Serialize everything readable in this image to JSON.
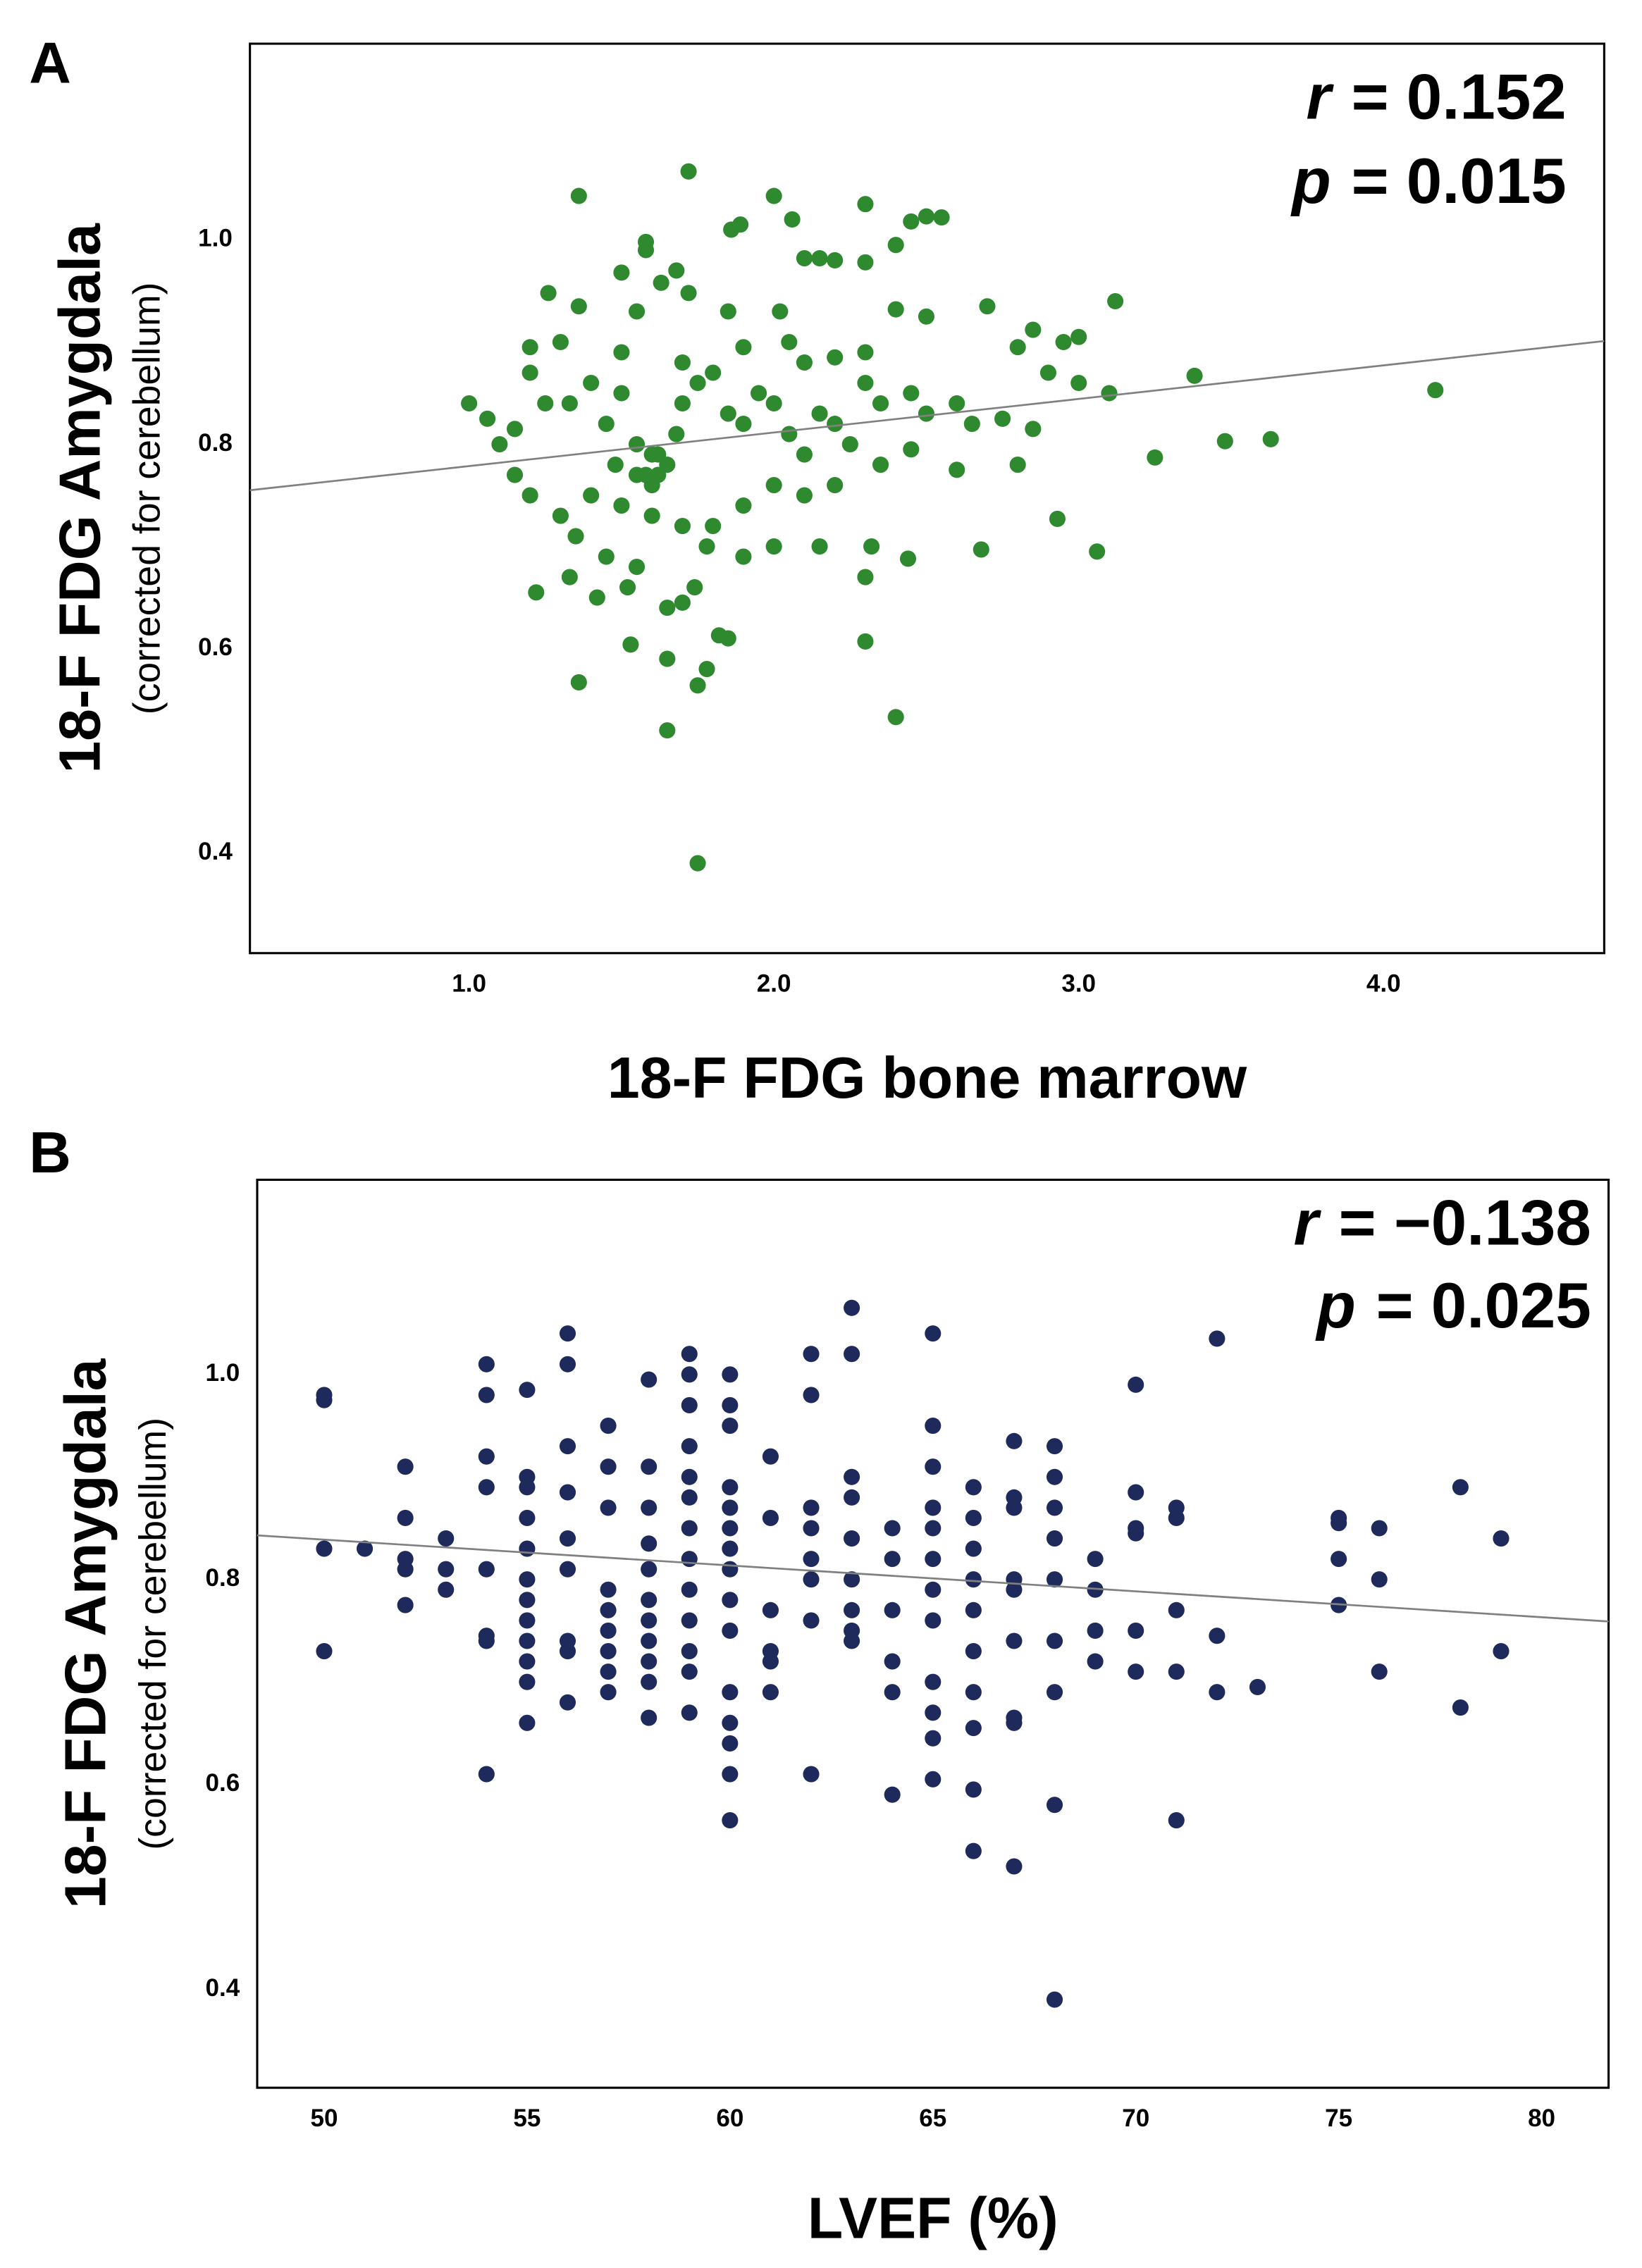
{
  "chart_data": [
    {
      "type": "scatter",
      "panel": "A",
      "xlabel": "18-F FDG bone marrow",
      "ylabel": "18-F FDG Amygdala",
      "ylabel_sub": "(corrected for cerebellum)",
      "annotations": [
        {
          "var": "r",
          "text": "= 0.152"
        },
        {
          "var": "p",
          "text": "= 0.015"
        }
      ],
      "xlim": [
        0.281,
        4.724
      ],
      "ylim": [
        0.302,
        1.192
      ],
      "xticks": [
        {
          "value": 1,
          "label": "1.0"
        },
        {
          "value": 2,
          "label": "2.0"
        },
        {
          "value": 3,
          "label": "3.0"
        },
        {
          "value": 4,
          "label": "4.0"
        }
      ],
      "yticks": [
        0.4,
        0.6,
        0.8,
        {
          "value": 1,
          "label": "1.0"
        }
      ],
      "series": [
        {
          "color": "#2f8a2f",
          "x": [
            1.72,
            1.36,
            2.0,
            2.3,
            2.5,
            2.55,
            2.45,
            2.06,
            1.89,
            1.86,
            1.58,
            1.58,
            2.1,
            2.15,
            2.2,
            2.3,
            2.4,
            1.5,
            1.63,
            1.68,
            1.72,
            1.26,
            1.36,
            1.55,
            1.85,
            2.02,
            2.4,
            2.5,
            2.7,
            3.12,
            2.85,
            2.95,
            2.8,
            3.0,
            1.2,
            1.3,
            1.5,
            1.7,
            1.9,
            2.05,
            2.1,
            2.2,
            2.3,
            1.0,
            1.06,
            1.1,
            1.15,
            1.2,
            1.25,
            1.33,
            1.4,
            1.45,
            1.5,
            1.55,
            1.6,
            1.62,
            1.65,
            1.68,
            1.7,
            1.75,
            1.8,
            1.85,
            1.9,
            1.95,
            2.0,
            2.05,
            2.1,
            2.15,
            2.2,
            2.25,
            2.3,
            2.35,
            2.45,
            2.5,
            2.6,
            2.65,
            2.75,
            2.9,
            3.0,
            3.1,
            3.38,
            4.17,
            3.48,
            3.63,
            3.25,
            2.8,
            2.85,
            2.6,
            2.45,
            2.35,
            2.2,
            2.1,
            2.0,
            1.9,
            1.8,
            1.7,
            1.6,
            1.5,
            1.4,
            1.3,
            1.2,
            1.15,
            1.35,
            1.45,
            1.55,
            1.7,
            1.78,
            1.9,
            2.0,
            2.15,
            2.3,
            2.32,
            2.44,
            2.68,
            2.93,
            3.06,
            1.22,
            1.33,
            1.42,
            1.52,
            1.65,
            1.74,
            1.85,
            1.82,
            1.53,
            1.65,
            2.3,
            1.78,
            1.36,
            1.75,
            2.4,
            1.65,
            1.75,
            1.6,
            1.58,
            1.62,
            1.55,
            1.48
          ],
          "values": [
            1.067,
            1.043,
            1.043,
            1.035,
            1.023,
            1.022,
            1.018,
            1.02,
            1.015,
            1.01,
            0.998,
            0.99,
            0.982,
            0.982,
            0.98,
            0.978,
            0.995,
            0.968,
            0.958,
            0.97,
            0.948,
            0.948,
            0.935,
            0.93,
            0.93,
            0.93,
            0.932,
            0.925,
            0.935,
            0.94,
            0.912,
            0.9,
            0.895,
            0.905,
            0.895,
            0.9,
            0.89,
            0.88,
            0.895,
            0.9,
            0.88,
            0.885,
            0.89,
            0.84,
            0.825,
            0.8,
            0.815,
            0.87,
            0.84,
            0.84,
            0.86,
            0.82,
            0.85,
            0.8,
            0.79,
            0.77,
            0.78,
            0.81,
            0.84,
            0.86,
            0.87,
            0.83,
            0.82,
            0.85,
            0.84,
            0.81,
            0.79,
            0.83,
            0.82,
            0.8,
            0.86,
            0.84,
            0.85,
            0.83,
            0.84,
            0.82,
            0.825,
            0.87,
            0.86,
            0.85,
            0.867,
            0.853,
            0.803,
            0.805,
            0.787,
            0.78,
            0.815,
            0.775,
            0.795,
            0.78,
            0.76,
            0.75,
            0.76,
            0.74,
            0.72,
            0.72,
            0.73,
            0.74,
            0.75,
            0.73,
            0.75,
            0.77,
            0.71,
            0.69,
            0.68,
            0.645,
            0.7,
            0.69,
            0.7,
            0.7,
            0.67,
            0.7,
            0.688,
            0.697,
            0.727,
            0.695,
            0.655,
            0.67,
            0.65,
            0.66,
            0.64,
            0.66,
            0.61,
            0.613,
            0.604,
            0.59,
            0.607,
            0.58,
            0.567,
            0.564,
            0.533,
            0.52,
            0.39,
            0.76,
            0.77,
            0.79,
            0.77,
            0.78
          ]
        }
      ],
      "trendline": {
        "color": "#808080",
        "x": [
          0.281,
          4.724
        ],
        "values": [
          0.755,
          0.901
        ]
      }
    },
    {
      "type": "scatter",
      "panel": "B",
      "xlabel": "LVEF (%)",
      "ylabel": "18-F FDG Amygdala",
      "ylabel_sub": "(corrected for cerebellum)",
      "annotations": [
        {
          "var": "r",
          "text": "= −0.138"
        },
        {
          "var": "p",
          "text": "= 0.025"
        }
      ],
      "xlim": [
        48.35,
        81.65
      ],
      "ylim": [
        0.304,
        1.19
      ],
      "xticks": [
        50,
        55,
        60,
        65,
        70,
        75,
        80
      ],
      "yticks": [
        0.4,
        0.6,
        0.8,
        {
          "value": 1,
          "label": "1.0"
        }
      ],
      "series": [
        {
          "color": "#1f2a5c",
          "x": [
            50,
            50,
            50,
            50,
            51,
            52,
            52,
            52,
            52,
            52,
            53,
            53,
            53,
            54,
            54,
            54,
            54,
            54,
            54,
            54,
            54,
            55,
            55,
            55,
            55,
            55,
            55,
            55,
            55,
            55,
            55,
            55,
            55,
            56,
            56,
            56,
            56,
            56,
            56,
            56,
            56,
            56,
            57,
            57,
            57,
            57,
            57,
            57,
            57,
            57,
            57,
            58,
            58,
            58,
            58,
            58,
            58,
            58,
            58,
            58,
            58,
            58,
            59,
            59,
            59,
            59,
            59,
            59,
            59,
            59,
            59,
            59,
            59,
            59,
            59,
            60,
            60,
            60,
            60,
            60,
            60,
            60,
            60,
            60,
            60,
            60,
            60,
            60,
            60,
            60,
            61,
            61,
            61,
            61,
            61,
            61,
            62,
            62,
            62,
            62,
            62,
            62,
            62,
            62,
            63,
            63,
            63,
            63,
            63,
            63,
            63,
            63,
            63,
            64,
            64,
            64,
            64,
            64,
            64,
            65,
            65,
            65,
            65,
            65,
            65,
            65,
            65,
            65,
            65,
            65,
            65,
            66,
            66,
            66,
            66,
            66,
            66,
            66,
            66,
            66,
            66,
            67,
            67,
            67,
            67,
            67,
            67,
            67,
            67,
            67,
            68,
            68,
            68,
            68,
            68,
            68,
            68,
            68,
            68,
            69,
            69,
            69,
            69,
            70,
            70,
            70,
            70,
            70,
            70,
            71,
            71,
            71,
            71,
            71,
            72,
            72,
            72,
            73,
            75,
            75,
            75,
            75,
            76,
            76,
            76,
            78,
            78,
            79,
            79
          ],
          "values": [
            0.98,
            0.975,
            0.83,
            0.73,
            0.83,
            0.91,
            0.86,
            0.82,
            0.81,
            0.775,
            0.84,
            0.81,
            0.79,
            1.01,
            0.98,
            0.92,
            0.89,
            0.81,
            0.745,
            0.74,
            0.61,
            0.985,
            0.9,
            0.89,
            0.86,
            0.83,
            0.8,
            0.78,
            0.76,
            0.74,
            0.72,
            0.7,
            0.66,
            1.04,
            1.01,
            0.93,
            0.885,
            0.84,
            0.81,
            0.74,
            0.73,
            0.68,
            0.95,
            0.91,
            0.87,
            0.79,
            0.77,
            0.75,
            0.73,
            0.71,
            0.69,
            0.995,
            0.91,
            0.87,
            0.835,
            0.81,
            0.78,
            0.76,
            0.74,
            0.72,
            0.7,
            0.665,
            1.02,
            1.0,
            0.97,
            0.93,
            0.9,
            0.88,
            0.85,
            0.82,
            0.79,
            0.76,
            0.73,
            0.71,
            0.67,
            1.0,
            0.97,
            0.95,
            0.89,
            0.87,
            0.85,
            0.83,
            0.81,
            0.78,
            0.75,
            0.69,
            0.66,
            0.64,
            0.61,
            0.565,
            0.92,
            0.86,
            0.77,
            0.73,
            0.72,
            0.69,
            1.02,
            0.98,
            0.87,
            0.85,
            0.82,
            0.8,
            0.76,
            0.61,
            1.065,
            1.02,
            0.9,
            0.88,
            0.84,
            0.8,
            0.77,
            0.75,
            0.74,
            0.85,
            0.82,
            0.77,
            0.72,
            0.69,
            0.59,
            1.04,
            0.95,
            0.91,
            0.87,
            0.85,
            0.82,
            0.79,
            0.76,
            0.7,
            0.67,
            0.645,
            0.605,
            0.89,
            0.86,
            0.83,
            0.8,
            0.77,
            0.73,
            0.69,
            0.655,
            0.595,
            0.535,
            0.935,
            0.88,
            0.87,
            0.8,
            0.79,
            0.74,
            0.665,
            0.66,
            0.52,
            0.93,
            0.9,
            0.87,
            0.84,
            0.8,
            0.74,
            0.69,
            0.58,
            0.39,
            0.82,
            0.79,
            0.75,
            0.72,
            0.99,
            0.885,
            0.85,
            0.845,
            0.75,
            0.71,
            0.87,
            0.86,
            0.77,
            0.71,
            0.565,
            1.035,
            0.745,
            0.69,
            0.695,
            0.86,
            0.855,
            0.82,
            0.775,
            0.85,
            0.8,
            0.71,
            0.89,
            0.675,
            0.84,
            0.73
          ]
        }
      ],
      "trendline": {
        "color": "#808080",
        "x": [
          48.35,
          81.65
        ],
        "values": [
          0.843,
          0.759
        ]
      }
    }
  ]
}
